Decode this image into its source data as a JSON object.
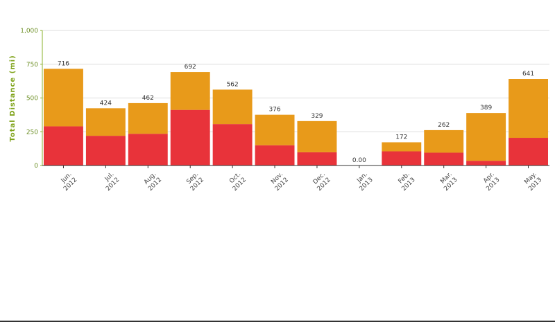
{
  "chart_data": {
    "type": "bar",
    "stacked": true,
    "ylabel": "Total Distance (mi)",
    "ylim": [
      0,
      1000
    ],
    "y_ticks": [
      "0",
      "250",
      "500",
      "750",
      "1,000"
    ],
    "y_tick_values": [
      0,
      250,
      500,
      750,
      1000
    ],
    "grid": true,
    "categories": [
      {
        "line1": "Jun.",
        "line2": "2012"
      },
      {
        "line1": "Jul.",
        "line2": "2012"
      },
      {
        "line1": "Aug.",
        "line2": "2012"
      },
      {
        "line1": "Sep.",
        "line2": "2012"
      },
      {
        "line1": "Oct.",
        "line2": "2012"
      },
      {
        "line1": "Nov.",
        "line2": "2012"
      },
      {
        "line1": "Dec.",
        "line2": "2012"
      },
      {
        "line1": "Jan.",
        "line2": "2013"
      },
      {
        "line1": "Feb.",
        "line2": "2013"
      },
      {
        "line1": "Mar.",
        "line2": "2013"
      },
      {
        "line1": "Apr.",
        "line2": "2013"
      },
      {
        "line1": "May.",
        "line2": "2013"
      }
    ],
    "series": [
      {
        "color": "#e8333a",
        "values": [
          290,
          220,
          235,
          412,
          307,
          150,
          98,
          0,
          105,
          95,
          35,
          205
        ]
      },
      {
        "color": "#e89a1a",
        "values": [
          426,
          204,
          227,
          280,
          255,
          226,
          231,
          0,
          67,
          167,
          354,
          436
        ]
      }
    ],
    "total_labels": [
      "716",
      "424",
      "462",
      "692",
      "562",
      "376",
      "329",
      "0.00",
      "172",
      "262",
      "389",
      "641"
    ]
  }
}
